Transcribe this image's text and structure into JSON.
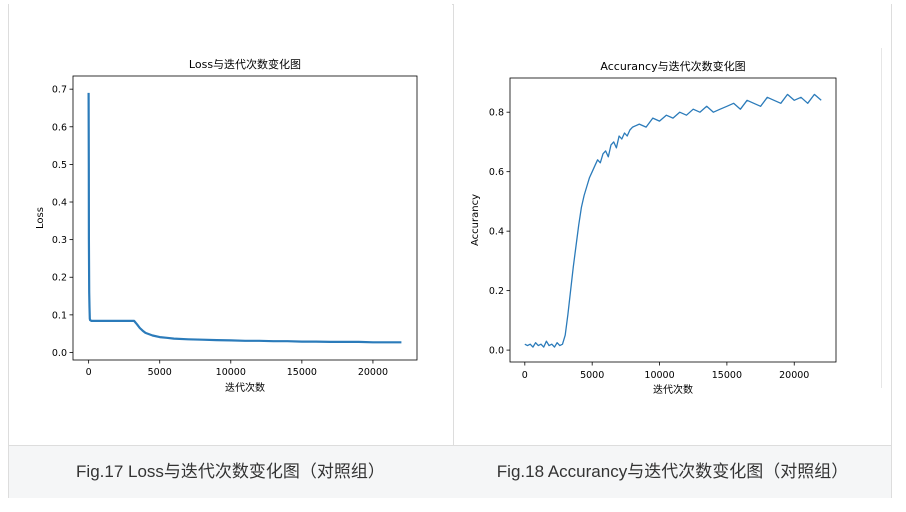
{
  "figures": [
    {
      "caption": "Fig.17 Loss与迭代次数变化图（对照组）",
      "chart_data": {
        "type": "line",
        "title": "Loss与迭代次数变化图",
        "xlabel": "迭代次数",
        "ylabel": "Loss",
        "xlim": [
          -1100,
          23100
        ],
        "ylim": [
          -0.02,
          0.735
        ],
        "xticks": [
          0,
          5000,
          10000,
          15000,
          20000
        ],
        "xtick_labels": [
          "0",
          "5000",
          "10000",
          "15000",
          "20000"
        ],
        "yticks": [
          0.0,
          0.1,
          0.2,
          0.3,
          0.4,
          0.5,
          0.6,
          0.7
        ],
        "ytick_labels": [
          "0.0",
          "0.1",
          "0.2",
          "0.3",
          "0.4",
          "0.5",
          "0.6",
          "0.7"
        ],
        "grid": false,
        "line_color": "#2b7bba",
        "series": [
          {
            "x": [
              0,
              10,
              20,
              40,
              60,
              80,
              100,
              150,
              200,
              400,
              800,
              1200,
              1600,
              2000,
              2400,
              2800,
              3000,
              3200,
              3400,
              3600,
              3800,
              4000,
              4500,
              5000,
              5500,
              6000,
              7000,
              8000,
              9000,
              10000,
              11000,
              12000,
              13000,
              14000,
              15000,
              16000,
              17000,
              18000,
              19000,
              20000,
              21000,
              22000
            ],
            "y": [
              0.69,
              0.5,
              0.3,
              0.16,
              0.12,
              0.09,
              0.086,
              0.085,
              0.084,
              0.084,
              0.084,
              0.084,
              0.084,
              0.084,
              0.084,
              0.084,
              0.084,
              0.084,
              0.075,
              0.065,
              0.058,
              0.052,
              0.045,
              0.041,
              0.039,
              0.037,
              0.035,
              0.034,
              0.033,
              0.032,
              0.031,
              0.031,
              0.03,
              0.03,
              0.029,
              0.029,
              0.028,
              0.028,
              0.028,
              0.027,
              0.027,
              0.027
            ]
          }
        ]
      }
    },
    {
      "caption": "Fig.18 Accurancy与迭代次数变化图（对照组）",
      "chart_data": {
        "type": "line",
        "title": "Accurancy与迭代次数变化图",
        "xlabel": "迭代次数",
        "ylabel": "Accurancy",
        "xlim": [
          -1100,
          23100
        ],
        "ylim": [
          -0.04,
          0.915
        ],
        "xticks": [
          0,
          5000,
          10000,
          15000,
          20000
        ],
        "xtick_labels": [
          "0",
          "5000",
          "10000",
          "15000",
          "20000"
        ],
        "yticks": [
          0.0,
          0.2,
          0.4,
          0.6,
          0.8
        ],
        "ytick_labels": [
          "0.0",
          "0.2",
          "0.4",
          "0.6",
          "0.8"
        ],
        "grid": false,
        "line_color": "#2b7bba",
        "series": [
          {
            "x": [
              0,
              200,
              400,
              600,
              800,
              1000,
              1200,
              1400,
              1600,
              1800,
              2000,
              2200,
              2400,
              2600,
              2800,
              3000,
              3200,
              3400,
              3600,
              3800,
              4000,
              4200,
              4400,
              4600,
              4800,
              5000,
              5200,
              5400,
              5600,
              5800,
              6000,
              6200,
              6400,
              6600,
              6800,
              7000,
              7200,
              7400,
              7600,
              7800,
              8000,
              8500,
              9000,
              9500,
              10000,
              10500,
              11000,
              11500,
              12000,
              12500,
              13000,
              13500,
              14000,
              14500,
              15000,
              15500,
              16000,
              16500,
              17000,
              17500,
              18000,
              18500,
              19000,
              19500,
              20000,
              20500,
              21000,
              21500,
              22000
            ],
            "y": [
              0.02,
              0.015,
              0.02,
              0.01,
              0.025,
              0.015,
              0.02,
              0.01,
              0.03,
              0.015,
              0.02,
              0.01,
              0.025,
              0.015,
              0.02,
              0.05,
              0.12,
              0.2,
              0.28,
              0.35,
              0.42,
              0.48,
              0.52,
              0.55,
              0.58,
              0.6,
              0.62,
              0.64,
              0.63,
              0.66,
              0.67,
              0.65,
              0.69,
              0.7,
              0.68,
              0.72,
              0.71,
              0.73,
              0.72,
              0.74,
              0.75,
              0.76,
              0.75,
              0.78,
              0.77,
              0.79,
              0.78,
              0.8,
              0.79,
              0.81,
              0.8,
              0.82,
              0.8,
              0.81,
              0.82,
              0.83,
              0.81,
              0.84,
              0.83,
              0.82,
              0.85,
              0.84,
              0.83,
              0.86,
              0.84,
              0.85,
              0.83,
              0.86,
              0.84
            ]
          }
        ]
      }
    }
  ]
}
